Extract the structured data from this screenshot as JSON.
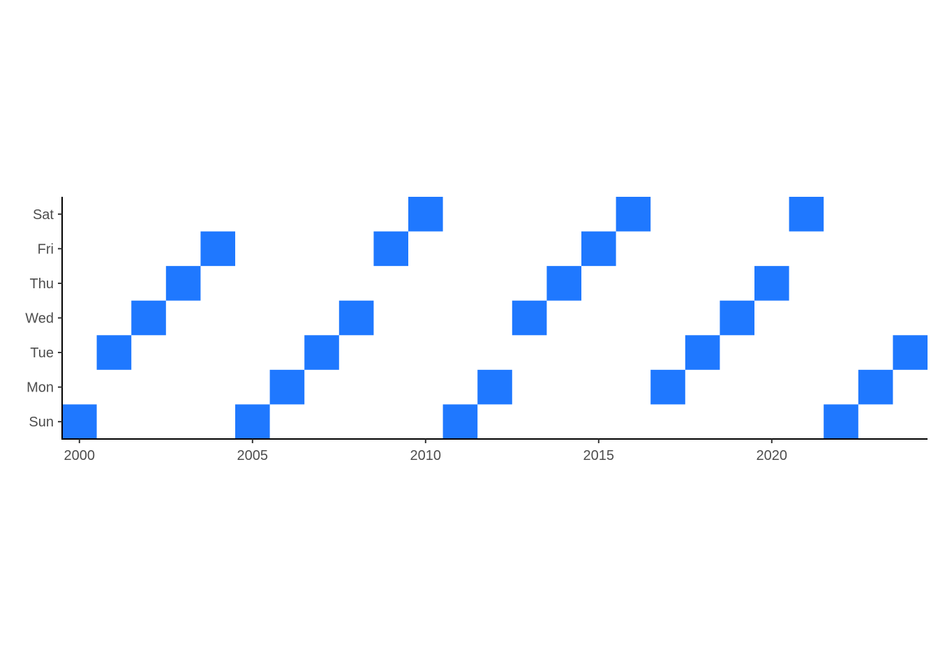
{
  "chart_data": {
    "type": "heatmap",
    "title": "",
    "xlabel": "",
    "ylabel": "",
    "x_ticks": [
      2000,
      2005,
      2010,
      2015,
      2020
    ],
    "y_categories": [
      "Sun",
      "Mon",
      "Tue",
      "Wed",
      "Thu",
      "Fri",
      "Sat"
    ],
    "xlim": [
      1999.5,
      2024.5
    ],
    "grid": false,
    "legend": "none",
    "fill_color": "#1f78ff",
    "points": [
      {
        "year": 2000,
        "day": "Sun"
      },
      {
        "year": 2001,
        "day": "Tue"
      },
      {
        "year": 2002,
        "day": "Wed"
      },
      {
        "year": 2003,
        "day": "Thu"
      },
      {
        "year": 2004,
        "day": "Fri"
      },
      {
        "year": 2005,
        "day": "Sun"
      },
      {
        "year": 2006,
        "day": "Mon"
      },
      {
        "year": 2007,
        "day": "Tue"
      },
      {
        "year": 2008,
        "day": "Wed"
      },
      {
        "year": 2009,
        "day": "Fri"
      },
      {
        "year": 2010,
        "day": "Sat"
      },
      {
        "year": 2011,
        "day": "Sun"
      },
      {
        "year": 2012,
        "day": "Mon"
      },
      {
        "year": 2013,
        "day": "Wed"
      },
      {
        "year": 2014,
        "day": "Thu"
      },
      {
        "year": 2015,
        "day": "Fri"
      },
      {
        "year": 2016,
        "day": "Sat"
      },
      {
        "year": 2017,
        "day": "Mon"
      },
      {
        "year": 2018,
        "day": "Tue"
      },
      {
        "year": 2019,
        "day": "Wed"
      },
      {
        "year": 2020,
        "day": "Thu"
      },
      {
        "year": 2021,
        "day": "Sat"
      },
      {
        "year": 2022,
        "day": "Sun"
      },
      {
        "year": 2023,
        "day": "Mon"
      },
      {
        "year": 2024,
        "day": "Tue"
      }
    ]
  }
}
